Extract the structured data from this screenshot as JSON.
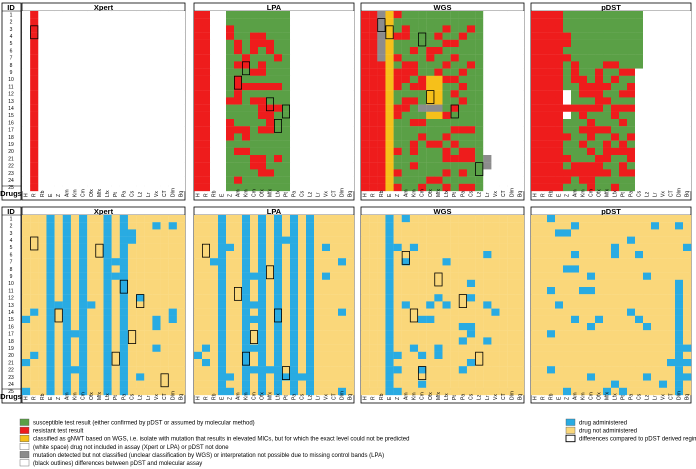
{
  "panel_titles": [
    "Xpert",
    "LPA",
    "WGS",
    "pDST"
  ],
  "id_header": "ID",
  "drugs_header": "Drugs",
  "ids": [
    "1",
    "2",
    "3",
    "4",
    "5",
    "6",
    "7",
    "8",
    "9",
    "10",
    "11",
    "12",
    "13",
    "14",
    "15",
    "16",
    "17",
    "18",
    "19",
    "20",
    "21",
    "22",
    "23",
    "24",
    "25"
  ],
  "drugs": [
    "H",
    "R",
    "Rb",
    "E",
    "Z",
    "Am",
    "Km",
    "Cm",
    "Ofx",
    "Mfx",
    "Lfx",
    "Pt",
    "Pa",
    "Cs",
    "Lz",
    "Lr",
    "Vx",
    "CT",
    "Dlm",
    "Bq"
  ],
  "legend_left": [
    {
      "label": "susceptible test result (either confirmed by pDST or assumed by molecular method)",
      "color": "#5aa046"
    },
    {
      "label": "resistant test result",
      "color": "#ee1c1c"
    },
    {
      "label": "classified as gNWT based on WGS, i.e. isolate with mutation that results in elevated MICs, but for which the exact level could not be predicted",
      "color": "#f6c01a"
    },
    {
      "label": "(white space) drug not included in assay (Xpert or LPA) or pDST not done",
      "color": "#ffffff"
    },
    {
      "label": "mutation detected but not classified (unclear classification by WGS) or interpretation not possible due to missing control bands (LPA)",
      "color": "#8c8c8c"
    },
    {
      "label": "(black outlines) differences between pDST and molecular assay",
      "color": "#ffffff"
    }
  ],
  "legend_right": [
    {
      "label": "drug administered",
      "color": "#29abe2"
    },
    {
      "label": "drug not administered",
      "color": "#fad77a"
    },
    {
      "label": "differences compared to pDST derived regimen",
      "color": "#ffffff"
    }
  ]
}
